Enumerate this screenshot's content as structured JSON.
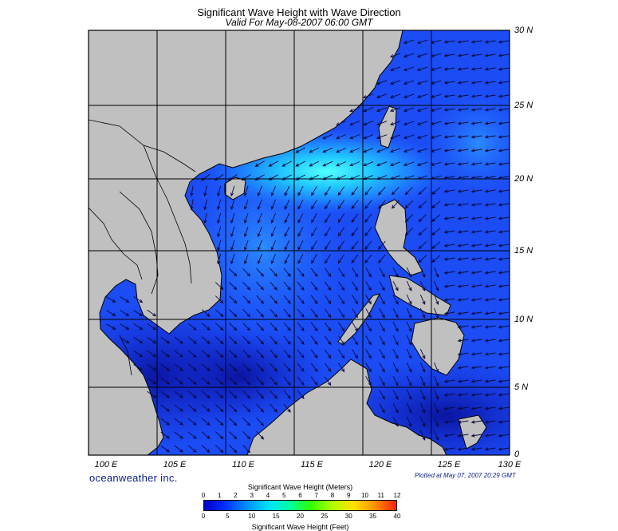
{
  "title": "Significant Wave Height with Wave Direction",
  "subtitle": "Valid For May-08-2007 06:00 GMT",
  "credit": "oceanweather inc.",
  "plotted": "Plotted at May 07, 2007 20:29 GMT",
  "latitude_labels": [
    "30 N",
    "25 N",
    "20 N",
    "15 N",
    "10 N",
    "5 N",
    "0"
  ],
  "longitude_labels": [
    "100 E",
    "105 E",
    "110 E",
    "115 E",
    "120 E",
    "125 E",
    "130 E"
  ],
  "colorbar": {
    "meters_label": "Significant Wave Height (Meters)",
    "feet_label": "Significant Wave Height (Feet)",
    "meters_ticks": [
      "0",
      "1",
      "2",
      "3",
      "4",
      "5",
      "6",
      "7",
      "8",
      "9",
      "10",
      "11",
      "12"
    ],
    "feet_ticks": [
      "0",
      "5",
      "10",
      "15",
      "20",
      "25",
      "30",
      "35",
      "40"
    ],
    "colors": [
      "#0000c8",
      "#0030ff",
      "#0090ff",
      "#00e0ff",
      "#00ffa0",
      "#30ff00",
      "#b0ff00",
      "#ffe000",
      "#ff9000",
      "#ff2000"
    ]
  },
  "colors": {
    "land": "#c0c0c0",
    "sea_low": "#1428d2",
    "sea_mid": "#1e5aff",
    "sea_high": "#3cc8ff",
    "arrow": "#0a0a3c"
  }
}
